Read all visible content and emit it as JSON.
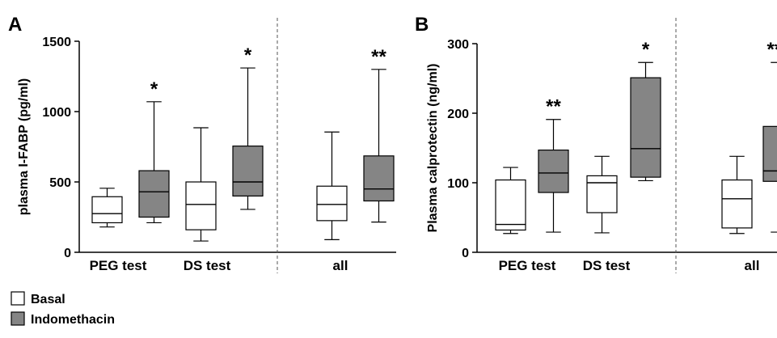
{
  "chart_data": [
    {
      "panel": "A",
      "type": "boxplot",
      "ylabel": "plasma I-FABP (pg/ml)",
      "ylim": [
        0,
        1500
      ],
      "yticks": [
        0,
        500,
        1000,
        1500
      ],
      "groups": [
        "PEG test",
        "DS test",
        "all"
      ],
      "boxes": [
        {
          "group": "PEG test",
          "series": "Basal",
          "min": 180,
          "q1": 210,
          "median": 275,
          "q3": 395,
          "max": 455,
          "sig": ""
        },
        {
          "group": "PEG test",
          "series": "Indomethacin",
          "min": 210,
          "q1": 250,
          "median": 430,
          "q3": 580,
          "max": 1070,
          "sig": "*"
        },
        {
          "group": "DS test",
          "series": "Basal",
          "min": 80,
          "q1": 160,
          "median": 340,
          "q3": 500,
          "max": 885,
          "sig": ""
        },
        {
          "group": "DS test",
          "series": "Indomethacin",
          "min": 305,
          "q1": 400,
          "median": 500,
          "q3": 755,
          "max": 1310,
          "sig": "*"
        },
        {
          "group": "all",
          "series": "Basal",
          "min": 90,
          "q1": 225,
          "median": 340,
          "q3": 470,
          "max": 855,
          "sig": ""
        },
        {
          "group": "all",
          "series": "Indomethacin",
          "min": 215,
          "q1": 365,
          "median": 450,
          "q3": 685,
          "max": 1300,
          "sig": "**"
        }
      ]
    },
    {
      "panel": "B",
      "type": "boxplot",
      "ylabel": "Plasma calprotectin (ng/ml)",
      "ylim": [
        0,
        300
      ],
      "yticks": [
        0,
        100,
        200,
        300
      ],
      "groups": [
        "PEG test",
        "DS test",
        "all"
      ],
      "boxes": [
        {
          "group": "PEG test",
          "series": "Basal",
          "min": 27,
          "q1": 32,
          "median": 40,
          "q3": 104,
          "max": 122,
          "sig": ""
        },
        {
          "group": "PEG test",
          "series": "Indomethacin",
          "min": 29,
          "q1": 86,
          "median": 114,
          "q3": 147,
          "max": 191,
          "sig": "**"
        },
        {
          "group": "DS test",
          "series": "Basal",
          "min": 28,
          "q1": 57,
          "median": 100,
          "q3": 110,
          "max": 138,
          "sig": ""
        },
        {
          "group": "DS test",
          "series": "Indomethacin",
          "min": 103,
          "q1": 108,
          "median": 149,
          "q3": 251,
          "max": 273,
          "sig": "*"
        },
        {
          "group": "all",
          "series": "Basal",
          "min": 27,
          "q1": 35,
          "median": 77,
          "q3": 104,
          "max": 138,
          "sig": ""
        },
        {
          "group": "all",
          "series": "Indomethacin",
          "min": 29,
          "q1": 102,
          "median": 117,
          "q3": 181,
          "max": 273,
          "sig": "***"
        }
      ]
    }
  ],
  "legend": [
    {
      "label": "Basal",
      "color": "#ffffff"
    },
    {
      "label": "Indomethacin",
      "color": "#858585"
    }
  ]
}
